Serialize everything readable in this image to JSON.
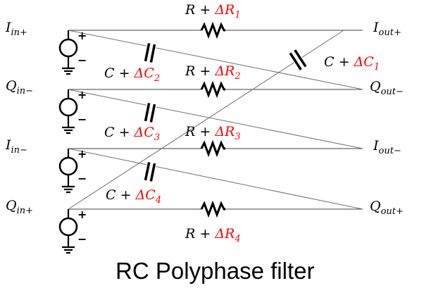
{
  "caption": "RC Polyphase filter",
  "colors": {
    "line": "#404040",
    "label": "#000000",
    "delta": "#ff0000"
  },
  "inputs": [
    {
      "base": "I",
      "sub": "in+"
    },
    {
      "base": "Q",
      "sub": "in−"
    },
    {
      "base": "I",
      "sub": "in−"
    },
    {
      "base": "Q",
      "sub": "in+"
    }
  ],
  "outputs": [
    {
      "base": "I",
      "sub": "out+"
    },
    {
      "base": "Q",
      "sub": "out−"
    },
    {
      "base": "I",
      "sub": "out−"
    },
    {
      "base": "Q",
      "sub": "out+"
    }
  ],
  "resistors": [
    {
      "prefix": "R + ",
      "delta": "ΔR",
      "index": "1"
    },
    {
      "prefix": "R + ",
      "delta": "ΔR",
      "index": "2"
    },
    {
      "prefix": "R + ",
      "delta": "ΔR",
      "index": "3"
    },
    {
      "prefix": "R + ",
      "delta": "ΔR",
      "index": "4"
    }
  ],
  "capacitors": [
    {
      "prefix": "C + ",
      "delta": "ΔC",
      "index": "1"
    },
    {
      "prefix": "C + ",
      "delta": "ΔC",
      "index": "2"
    },
    {
      "prefix": "C + ",
      "delta": "ΔC",
      "index": "3"
    },
    {
      "prefix": "C + ",
      "delta": "ΔC",
      "index": "4"
    }
  ],
  "source_polarity": {
    "plus": "+",
    "minus": "−"
  }
}
